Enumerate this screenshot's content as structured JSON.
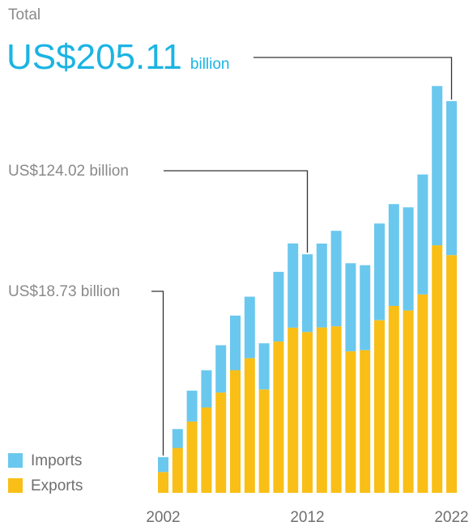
{
  "headline": {
    "label": "Total",
    "value": "US$205.11",
    "unit": "billion"
  },
  "annotations": [
    {
      "year": 2002,
      "text": "US$18.73 billion"
    },
    {
      "year": 2012,
      "text": "US$124.02 billion"
    },
    {
      "year": 2022,
      "text": "US$205.11 billion"
    }
  ],
  "chart_data": {
    "type": "bar",
    "stacked": true,
    "x": [
      2002,
      2003,
      2004,
      2005,
      2006,
      2007,
      2008,
      2009,
      2010,
      2011,
      2012,
      2013,
      2014,
      2015,
      2016,
      2017,
      2018,
      2019,
      2020,
      2021,
      2022
    ],
    "series": [
      {
        "name": "Exports",
        "color": "#f9bf16",
        "values": [
          10.9,
          23.5,
          37.3,
          44.7,
          52.5,
          64.2,
          70.5,
          54.1,
          79.2,
          86.5,
          84.2,
          86.6,
          87.2,
          74.1,
          74.7,
          90.4,
          97.9,
          95.5,
          103.9,
          129.6,
          124.5
        ]
      },
      {
        "name": "Imports",
        "color": "#6ac8ee",
        "values": [
          7.8,
          9.9,
          16.2,
          19.5,
          24.8,
          28.6,
          32.2,
          24.2,
          36.5,
          44.1,
          40.7,
          43.9,
          50.0,
          46.1,
          44.5,
          50.6,
          53.3,
          54.0,
          62.8,
          83.4,
          80.6
        ]
      }
    ],
    "xticks": [
      2002,
      2012,
      2022
    ],
    "legend_position": "bottom-left",
    "grid": false
  }
}
